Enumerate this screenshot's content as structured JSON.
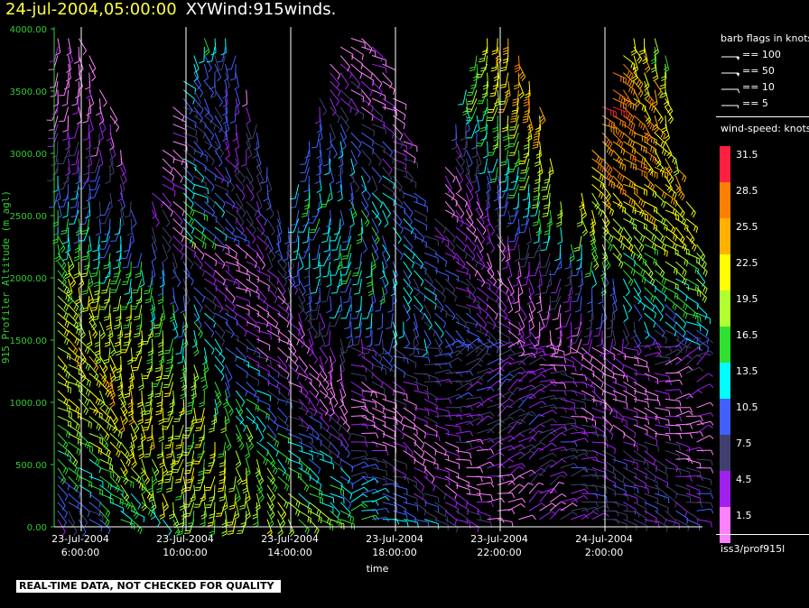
{
  "header": {
    "datetime": "24-jul-2004,05:00:00",
    "plot_title": "XYWind:915winds."
  },
  "chart_data": {
    "type": "wind-barb time-height plot",
    "ylabel": "915 Profiler Altitude (m agl)",
    "xlabel": "time",
    "ylim": [
      0,
      4000
    ],
    "yticks": [
      "0.00",
      "500.00",
      "1000.00",
      "1500.00",
      "2000.00",
      "2500.00",
      "3000.00",
      "3500.00",
      "4000.00"
    ],
    "xticks": [
      {
        "date": "23-Jul-2004",
        "time": "6:00:00"
      },
      {
        "date": "23-Jul-2004",
        "time": "10:00:00"
      },
      {
        "date": "23-Jul-2004",
        "time": "14:00:00"
      },
      {
        "date": "23-Jul-2004",
        "time": "18:00:00"
      },
      {
        "date": "23-Jul-2004",
        "time": "22:00:00"
      },
      {
        "date": "24-Jul-2004",
        "time": "2:00:00"
      }
    ],
    "vertical_gridlines": true,
    "colors": {
      "axis": "#33cc33",
      "gridline": "#ffffff"
    }
  },
  "legend": {
    "barb_title": "barb flags in knots",
    "barb_flags": [
      "== 100",
      "== 50",
      "== 10",
      "== 5"
    ],
    "speed_title": "wind-speed: knots",
    "speed_bins": [
      {
        "label": "31.5",
        "color": "#ff2040"
      },
      {
        "label": "28.5",
        "color": "#ff8000"
      },
      {
        "label": "25.5",
        "color": "#ffb000"
      },
      {
        "label": "22.5",
        "color": "#ffff00"
      },
      {
        "label": "19.5",
        "color": "#b0ff30"
      },
      {
        "label": "16.5",
        "color": "#30e030"
      },
      {
        "label": "13.5",
        "color": "#00ffff"
      },
      {
        "label": "10.5",
        "color": "#4060ff"
      },
      {
        "label": "7.5",
        "color": "#404070"
      },
      {
        "label": "4.5",
        "color": "#a020f0"
      },
      {
        "label": "1.5",
        "color": "#ff80ff"
      }
    ],
    "source": "iss3/prof915l"
  },
  "footer_note": "REAL-TIME DATA, NOT CHECKED FOR QUALITY"
}
